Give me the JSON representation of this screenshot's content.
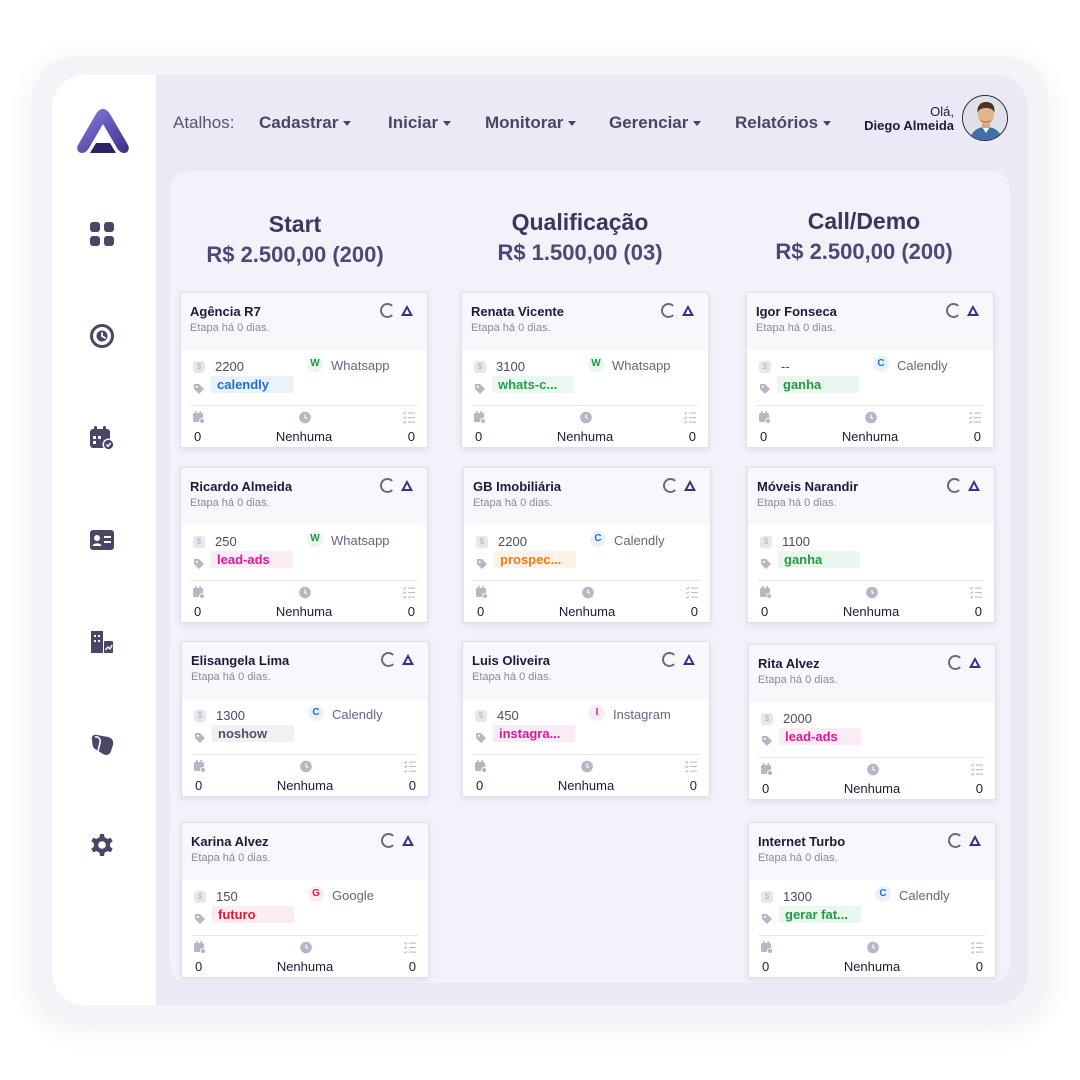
{
  "header": {
    "shortcuts_label": "Atalhos:",
    "menus": [
      "Cadastrar",
      "Iniciar",
      "Monitorar",
      "Gerenciar",
      "Relatórios"
    ],
    "greeting": "Olá,",
    "user_name": "Diego Almeida"
  },
  "sidebar": {
    "icons": [
      "dashboard-icon",
      "clock-icon",
      "calendar-check-icon",
      "contact-card-icon",
      "building-report-icon",
      "shapes-icon",
      "gear-icon"
    ]
  },
  "columns": [
    {
      "title": "Start",
      "total": "R$ 2.500,00 (200)"
    },
    {
      "title": "Qualificação",
      "total": "R$ 1.500,00 (03)"
    },
    {
      "title": "Call/Demo",
      "total": "R$ 2.500,00 (200)"
    }
  ],
  "cards": [
    {
      "name": "Agência R7",
      "sub": "Etapa há 0 dias.",
      "value": "2200",
      "src_letter": "W",
      "source": "Whatsapp",
      "tag": "calendly",
      "tag_color": "#1d6fd6",
      "tag_bg": "#eaf2fc",
      "f1": "0",
      "f2": "Nenhuma",
      "f3": "0"
    },
    {
      "name": "Ricardo Almeida",
      "sub": "Etapa há 0 dias.",
      "value": "250",
      "src_letter": "W",
      "source": "Whatsapp",
      "tag": "lead-ads",
      "tag_color": "#e0179a",
      "tag_bg": "#fdecf6",
      "f1": "0",
      "f2": "Nenhuma",
      "f3": "0"
    },
    {
      "name": "Elisangela Lima",
      "sub": "Etapa há 0 dias.",
      "value": "1300",
      "src_letter": "C",
      "source": "Calendly",
      "tag": "noshow",
      "tag_color": "#555060",
      "tag_bg": "#f1f0f4",
      "f1": "0",
      "f2": "Nenhuma",
      "f3": "0"
    },
    {
      "name": "Karina Alvez",
      "sub": "Etapa há 0 dias.",
      "value": "150",
      "src_letter": "G",
      "source": "Google",
      "tag": "futuro",
      "tag_color": "#d81b3c",
      "tag_bg": "#fdecef",
      "f1": "0",
      "f2": "Nenhuma",
      "f3": "0"
    },
    {
      "name": "Renata Vicente",
      "sub": "Etapa há 0 dias.",
      "value": "3100",
      "src_letter": "W",
      "source": "Whatsapp",
      "tag": "whats-c...",
      "tag_color": "#22a04a",
      "tag_bg": "#ebf8ef",
      "f1": "0",
      "f2": "Nenhuma",
      "f3": "0"
    },
    {
      "name": "GB Imobiliária",
      "sub": "Etapa há 0 dias.",
      "value": "2200",
      "src_letter": "C",
      "source": "Calendly",
      "tag": "prospec...",
      "tag_color": "#ee7a12",
      "tag_bg": "#fff3e8",
      "f1": "0",
      "f2": "Nenhuma",
      "f3": "0"
    },
    {
      "name": "Luis Oliveira",
      "sub": "Etapa há 0 dias.",
      "value": "450",
      "src_letter": "I",
      "source": "Instagram",
      "tag": "instagra...",
      "tag_color": "#d21d9a",
      "tag_bg": "#fcebf7",
      "f1": "0",
      "f2": "Nenhuma",
      "f3": "0"
    },
    {
      "name": "Igor Fonseca",
      "sub": "Etapa há 0 dias.",
      "value": "--",
      "src_letter": "C",
      "source": "Calendly",
      "tag": "ganha",
      "tag_color": "#1f9b44",
      "tag_bg": "#eaf7ee",
      "f1": "0",
      "f2": "Nenhuma",
      "f3": "0"
    },
    {
      "name": "Móveis Narandir",
      "sub": "Etapa há 0 dias.",
      "value": "1100",
      "src_letter": "",
      "source": "",
      "tag": "ganha",
      "tag_color": "#1f9b44",
      "tag_bg": "#eaf7ee",
      "f1": "0",
      "f2": "Nenhuma",
      "f3": "0"
    },
    {
      "name": "Rita Alvez",
      "sub": "Etapa há 0 dias.",
      "value": "2000",
      "src_letter": "",
      "source": "",
      "tag": "lead-ads",
      "tag_color": "#e0179a",
      "tag_bg": "#fdecf6",
      "f1": "0",
      "f2": "Nenhuma",
      "f3": "0"
    },
    {
      "name": "Internet Turbo",
      "sub": "Etapa há 0 dias.",
      "value": "1300",
      "src_letter": "C",
      "source": "Calendly",
      "tag": "gerar fat...",
      "tag_color": "#1f9b44",
      "tag_bg": "#eaf7ee",
      "f1": "0",
      "f2": "Nenhuma",
      "f3": "0"
    }
  ],
  "source_colors": {
    "W": {
      "fg": "#1f9b44",
      "bg": "#e7f6ec"
    },
    "C": {
      "fg": "#1d6fd6",
      "bg": "#e8f1fc"
    },
    "G": {
      "fg": "#d81b3c",
      "bg": "#fdecef"
    },
    "I": {
      "fg": "#b02aa0",
      "bg": "#f8eaf6"
    }
  }
}
